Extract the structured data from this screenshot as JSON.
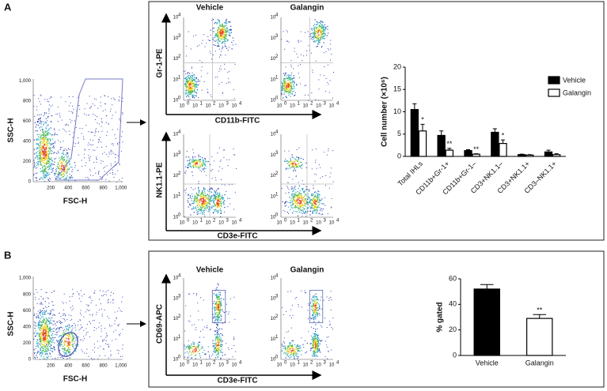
{
  "figure": {
    "panel_labels": [
      "A",
      "B"
    ],
    "scatter_axes": {
      "y_label": "SSC-H",
      "x_label": "FSC-H",
      "y_ticks": [
        "0",
        "200",
        "400",
        "600",
        "800",
        "1,000"
      ],
      "x_ticks": [
        "200",
        "400",
        "600",
        "800",
        "1,000"
      ]
    },
    "log_ticks": {
      "base": "10",
      "exponents": [
        "0",
        "1",
        "2",
        "3",
        "4"
      ]
    },
    "conditions": [
      "Vehicle",
      "Galangin"
    ],
    "markers": {
      "gr1": "Gr-1-PE",
      "cd11b": "CD11b-FITC",
      "nk11": "NK1.1-PE",
      "cd3e": "CD3e-FITC",
      "cd69": "CD69-APC"
    }
  },
  "chart_data": [
    {
      "type": "bar",
      "y_label": "Cell number (×10⁶)",
      "categories": [
        "Total IHLs",
        "CD11b+Gr-1+",
        "CD11b+Gr-1–",
        "CD3+NK1.1–",
        "CD3+NK1.1+",
        "CD3–NK1.1+"
      ],
      "series": [
        {
          "name": "Vehicle",
          "color": "#000000",
          "values": [
            10.5,
            4.7,
            1.3,
            5.4,
            0.4,
            1.0
          ],
          "errors": [
            1.3,
            1.0,
            0.2,
            0.8,
            0.1,
            0.4
          ],
          "stars": [
            null,
            null,
            null,
            null,
            null,
            null
          ]
        },
        {
          "name": "Galangin",
          "color": "#ffffff",
          "values": [
            5.7,
            1.4,
            0.5,
            2.9,
            0.3,
            0.4
          ],
          "errors": [
            1.5,
            0.4,
            0.1,
            0.8,
            0.1,
            0.2
          ],
          "stars": [
            "*",
            "**",
            "**",
            "*",
            null,
            null
          ]
        }
      ],
      "ylim": [
        0,
        20
      ],
      "yticks": [
        0,
        5,
        10,
        15,
        20
      ]
    },
    {
      "type": "bar",
      "y_label": "% gated",
      "categories": [
        "Vehicle",
        "Galangin"
      ],
      "values": [
        52,
        29
      ],
      "errors": [
        3.5,
        3
      ],
      "colors": [
        "#000000",
        "#ffffff"
      ],
      "stars": [
        null,
        "**"
      ],
      "ylim": [
        0,
        60
      ],
      "yticks": [
        0,
        20,
        40,
        60
      ]
    }
  ]
}
